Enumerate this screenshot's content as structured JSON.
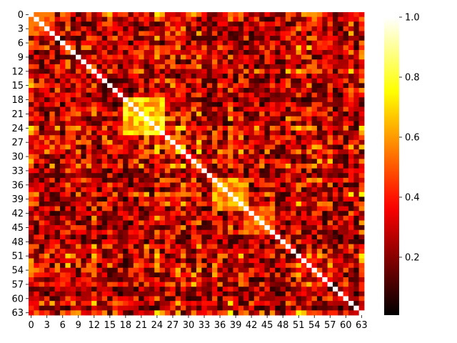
{
  "chart_data": {
    "type": "heatmap",
    "size": 64,
    "colormap": "hot",
    "value_range": [
      0.0,
      1.0
    ],
    "diagonal_value": 1.0,
    "x_tick_labels": [
      "0",
      "3",
      "6",
      "9",
      "12",
      "15",
      "18",
      "21",
      "24",
      "27",
      "30",
      "33",
      "36",
      "39",
      "42",
      "45",
      "48",
      "51",
      "54",
      "57",
      "60",
      "63"
    ],
    "y_tick_labels": [
      "0",
      "3",
      "6",
      "9",
      "12",
      "15",
      "18",
      "21",
      "24",
      "27",
      "30",
      "33",
      "36",
      "39",
      "42",
      "45",
      "48",
      "51",
      "54",
      "57",
      "60",
      "63"
    ],
    "colorbar_ticks": [
      {
        "value": 0.2,
        "label": "0.2"
      },
      {
        "value": 0.4,
        "label": "0.4"
      },
      {
        "value": 0.6,
        "label": "0.6"
      },
      {
        "value": 0.8,
        "label": "0.8"
      },
      {
        "value": 1.0,
        "label": "1.0"
      }
    ],
    "cluster_blocks": [
      {
        "from": 18,
        "to": 25,
        "level": 0.72
      },
      {
        "from": 35,
        "to": 41,
        "level": 0.62
      },
      {
        "from": 41,
        "to": 46,
        "level": 0.55
      },
      {
        "from": 0,
        "to": 4,
        "level": 0.5
      }
    ],
    "background_level_mean": 0.3,
    "xlabel": "",
    "ylabel": "",
    "title": ""
  }
}
